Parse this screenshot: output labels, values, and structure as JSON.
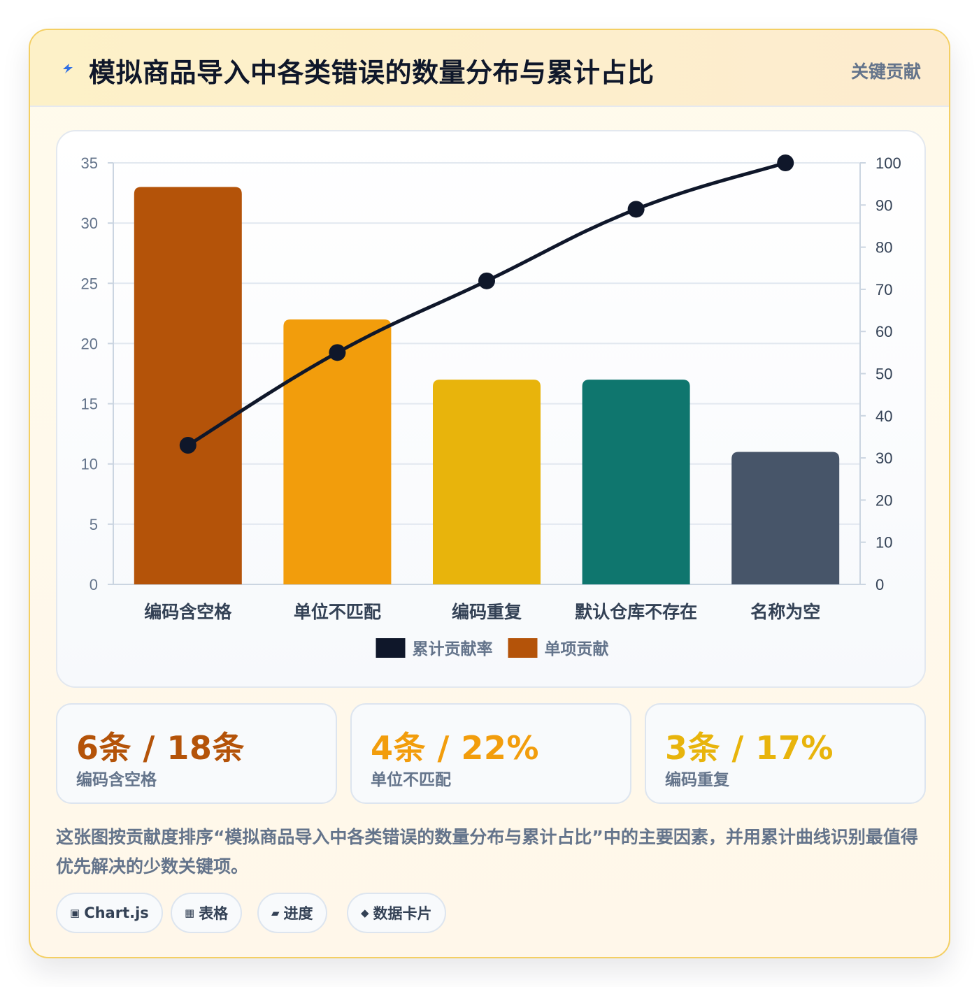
{
  "header": {
    "title": "模拟商品导入中各类错误的数量分布与累计占比",
    "tag": "关键贡献",
    "icon": "lightning-icon"
  },
  "chart_data": {
    "type": "bar",
    "categories": [
      "编码含空格",
      "单位不匹配",
      "编码重复",
      "默认仓库不存在",
      "名称为空"
    ],
    "series": [
      {
        "name": "单项贡献",
        "type": "bar",
        "axis": "left",
        "values": [
          33,
          22,
          17,
          17,
          11
        ],
        "colors": [
          "#b45309",
          "#f29d0c",
          "#e8b40c",
          "#0f766e",
          "#475569"
        ]
      },
      {
        "name": "累计贡献率",
        "type": "line",
        "axis": "right",
        "values": [
          33,
          55,
          72,
          89,
          100
        ],
        "color": "#0f172a"
      }
    ],
    "left_axis": {
      "min": 0,
      "max": 35,
      "ticks": [
        "0",
        "5",
        "10",
        "15",
        "20",
        "25",
        "30",
        "35"
      ]
    },
    "right_axis": {
      "min": 0,
      "max": 100,
      "ticks": [
        "0",
        "10",
        "20",
        "30",
        "40",
        "50",
        "60",
        "70",
        "80",
        "90",
        "100"
      ]
    },
    "legend": [
      {
        "label": "累计贡献率",
        "color": "#0f172a"
      },
      {
        "label": "单项贡献",
        "color": "#b45309"
      }
    ],
    "legend_position": "bottom",
    "grid": true
  },
  "stats": [
    {
      "value": "6条 / 18条",
      "label": "编码含空格",
      "color": "#b45309"
    },
    {
      "value": "4条 / 22%",
      "label": "单位不匹配",
      "color": "#f29d0c"
    },
    {
      "value": "3条 / 17%",
      "label": "编码重复",
      "color": "#e8b40c"
    }
  ],
  "description": "这张图按贡献度排序“模拟商品导入中各类错误的数量分布与累计占比”中的主要因素，并用累计曲线识别最值得优先解决的少数关键项。",
  "tags": [
    {
      "icon": "▣",
      "icon_name": "chart-icon",
      "label": "Chart.js"
    },
    {
      "icon": "▦",
      "icon_name": "table-icon",
      "label": "表格"
    },
    {
      "icon": "▰",
      "icon_name": "progress-icon",
      "label": "进度"
    },
    {
      "icon": "◆",
      "icon_name": "card-icon",
      "label": "数据卡片"
    }
  ]
}
